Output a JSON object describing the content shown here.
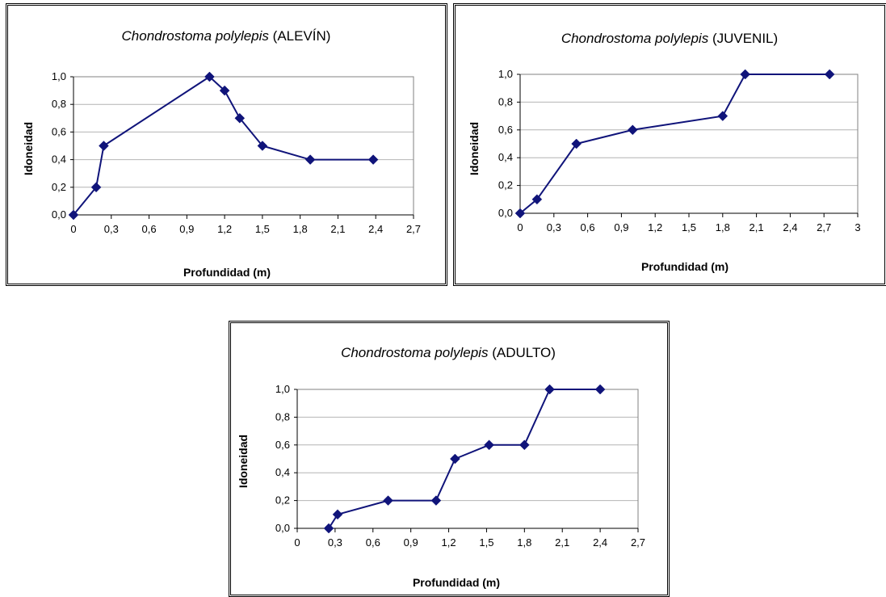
{
  "colors": {
    "series": "#10147a",
    "grid": "#b4b4b4",
    "plot_border": "#808080",
    "axis": "#000000"
  },
  "chart_data": [
    {
      "type": "line",
      "title": {
        "species": "Chondrostoma polylepis",
        "stage": "(ALEVÍN)"
      },
      "xlabel": "Profundidad (m)",
      "ylabel": "Idoneidad",
      "xlim": [
        0,
        2.7
      ],
      "ylim": [
        0,
        1.0
      ],
      "x_ticks": [
        "0",
        "0,3",
        "0,6",
        "0,9",
        "1,2",
        "1,5",
        "1,8",
        "2,1",
        "2,4",
        "2,7"
      ],
      "y_ticks": [
        "0,0",
        "0,2",
        "0,4",
        "0,6",
        "0,8",
        "1,0"
      ],
      "grid": true,
      "legend": "none",
      "marker": "diamond",
      "x": [
        0,
        0.18,
        0.24,
        1.08,
        1.2,
        1.32,
        1.5,
        1.88,
        2.38
      ],
      "y": [
        0,
        0.2,
        0.5,
        1.0,
        0.9,
        0.7,
        0.5,
        0.4,
        0.4
      ]
    },
    {
      "type": "line",
      "title": {
        "species": "Chondrostoma polylepis",
        "stage": "(JUVENIL)"
      },
      "xlabel": "Profundidad (m)",
      "ylabel": "Idoneidad",
      "xlim": [
        0,
        3.0
      ],
      "ylim": [
        0,
        1.0
      ],
      "x_ticks": [
        "0",
        "0,3",
        "0,6",
        "0,9",
        "1,2",
        "1,5",
        "1,8",
        "2,1",
        "2,4",
        "2,7",
        "3"
      ],
      "y_ticks": [
        "0,0",
        "0,2",
        "0,4",
        "0,6",
        "0,8",
        "1,0"
      ],
      "grid": true,
      "legend": "none",
      "marker": "diamond",
      "x": [
        0,
        0.15,
        0.5,
        1.0,
        1.8,
        2.0,
        2.75
      ],
      "y": [
        0,
        0.1,
        0.5,
        0.6,
        0.7,
        1.0,
        1.0
      ]
    },
    {
      "type": "line",
      "title": {
        "species": "Chondrostoma polylepis",
        "stage": "(ADULTO)"
      },
      "xlabel": "Profundidad (m)",
      "ylabel": "Idoneidad",
      "xlim": [
        0,
        2.7
      ],
      "ylim": [
        0,
        1.0
      ],
      "x_ticks": [
        "0",
        "0,3",
        "0,6",
        "0,9",
        "1,2",
        "1,5",
        "1,8",
        "2,1",
        "2,4",
        "2,7"
      ],
      "y_ticks": [
        "0,0",
        "0,2",
        "0,4",
        "0,6",
        "0,8",
        "1,0"
      ],
      "grid": true,
      "legend": "none",
      "marker": "diamond",
      "x": [
        0.25,
        0.32,
        0.72,
        1.1,
        1.25,
        1.52,
        1.8,
        2.0,
        2.4
      ],
      "y": [
        0,
        0.1,
        0.2,
        0.2,
        0.5,
        0.6,
        0.6,
        1.0,
        1.0
      ]
    }
  ]
}
